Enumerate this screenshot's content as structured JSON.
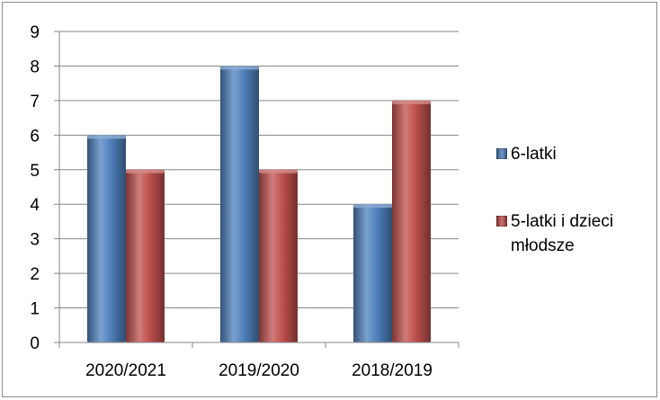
{
  "chart_data": {
    "type": "bar",
    "categories": [
      "2020/2021",
      "2019/2020",
      "2018/2019"
    ],
    "series": [
      {
        "name": "6-latki",
        "values": [
          6,
          8,
          4
        ],
        "color": "#4f81bd"
      },
      {
        "name": "5-latki i dzieci młodsze",
        "values": [
          5,
          5,
          7
        ],
        "color": "#c0504d"
      }
    ],
    "ylim": [
      0,
      9
    ],
    "yticks": [
      0,
      1,
      2,
      3,
      4,
      5,
      6,
      7,
      8,
      9
    ],
    "grid": true,
    "legend_position": "right"
  }
}
